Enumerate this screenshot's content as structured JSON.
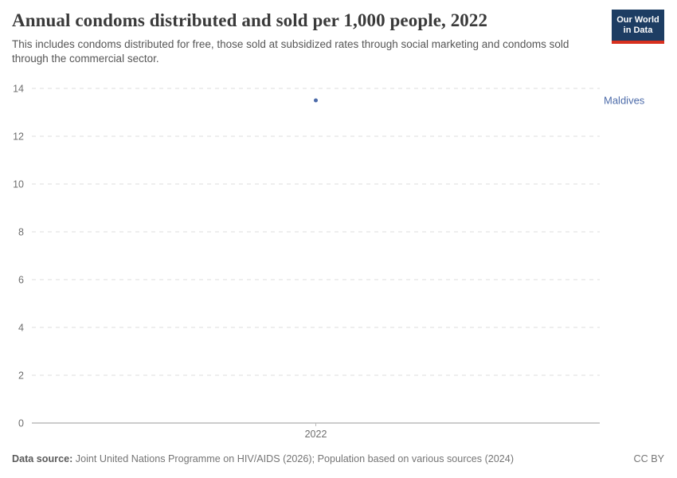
{
  "header": {
    "title": "Annual condoms distributed and sold per 1,000 people, 2022",
    "subtitle": "This includes condoms distributed for free, those sold at subsidized rates through social marketing and condoms sold through the commercial sector."
  },
  "logo": {
    "line1": "Our World",
    "line2": "in Data",
    "bg_color": "#1d3d63",
    "bar_color": "#d8301f"
  },
  "chart_data": {
    "type": "scatter",
    "title": "Annual condoms distributed and sold per 1,000 people, 2022",
    "x": [
      2022
    ],
    "series": [
      {
        "name": "Maldives",
        "color": "#4c6ba9",
        "values": [
          13.5
        ]
      }
    ],
    "yticks": [
      0,
      2,
      4,
      6,
      8,
      10,
      12,
      14
    ],
    "xticks": [
      "2022"
    ],
    "ylim": [
      0,
      14
    ],
    "grid": "horizontal-dashed",
    "legend_position": "right-entity-label"
  },
  "colors": {
    "grid": "#dcdcdc",
    "axis": "#999999",
    "tick_text": "#6e6e6e"
  },
  "footer": {
    "data_source_label": "Data source:",
    "data_source_text": " Joint United Nations Programme on HIV/AIDS (2026); Population based on various sources (2024)",
    "license": "CC BY"
  }
}
